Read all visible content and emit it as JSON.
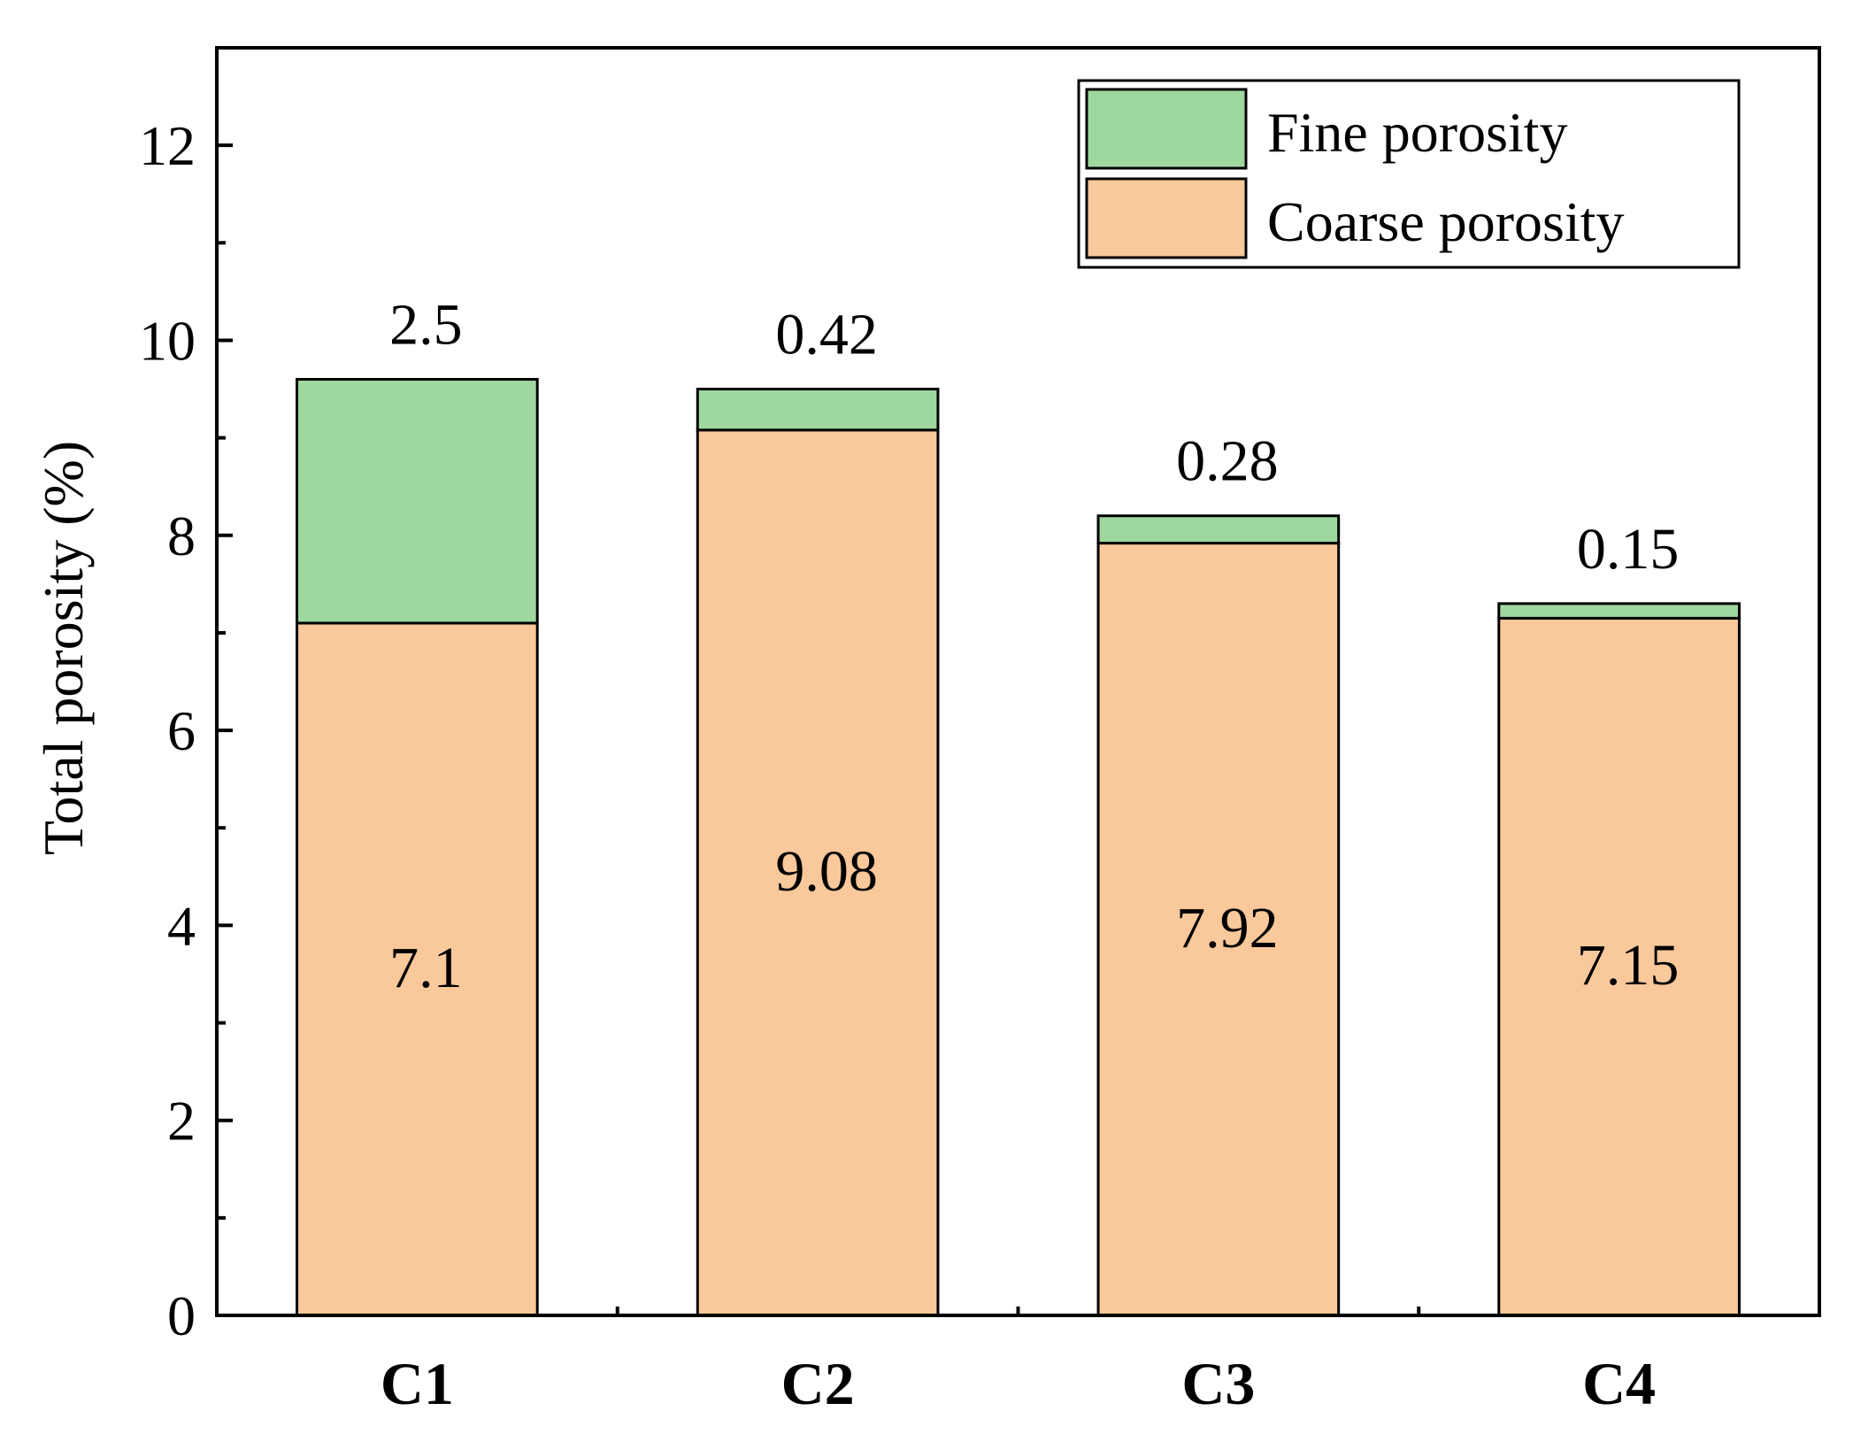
{
  "chart_data": {
    "type": "bar",
    "stacked": true,
    "title": "",
    "xlabel": "",
    "ylabel": "Total porosity (%)",
    "ylim": [
      0,
      13
    ],
    "yticks": [
      0,
      2,
      4,
      6,
      8,
      10,
      12
    ],
    "categories": [
      "C1",
      "C2",
      "C3",
      "C4"
    ],
    "series": [
      {
        "name": "Coarse porosity",
        "color": "#F9C89B",
        "values": [
          7.1,
          9.08,
          7.92,
          7.15
        ],
        "labels": [
          "7.1",
          "9.08",
          "7.92",
          "7.15"
        ]
      },
      {
        "name": "Fine porosity",
        "color": "#9FD89F",
        "values": [
          2.5,
          0.42,
          0.28,
          0.15
        ],
        "labels": [
          "2.5",
          "0.42",
          "0.28",
          "0.15"
        ]
      }
    ],
    "legend": {
      "position": "top-right",
      "entries": [
        "Fine porosity",
        "Coarse porosity"
      ]
    }
  }
}
